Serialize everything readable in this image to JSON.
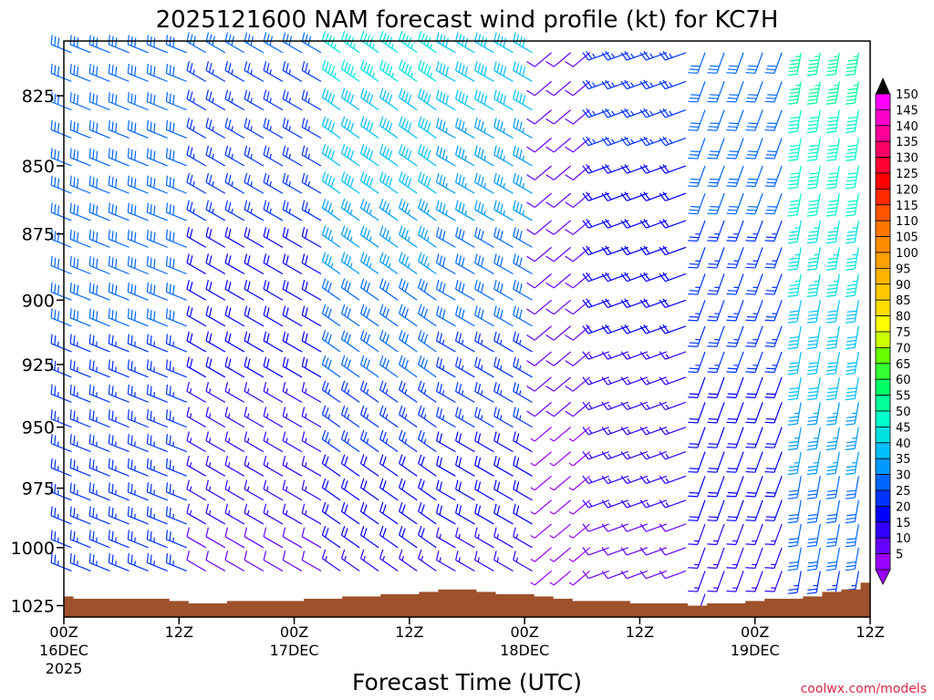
{
  "chart_data": {
    "type": "wind-barb",
    "title": "2025121600 NAM forecast wind profile (kt) for KC7H",
    "xlabel": "Forecast Time (UTC)",
    "ylabel": "",
    "watermark": "coolwx.com/models",
    "y_axis": {
      "reversed": true,
      "ticks": [
        825,
        850,
        875,
        900,
        925,
        950,
        975,
        1000,
        1025
      ],
      "range": [
        806,
        1030
      ]
    },
    "x_axis": {
      "range_hours": [
        0,
        84
      ],
      "ticks": [
        {
          "hour": 0,
          "label": "00Z",
          "sub": "16DEC",
          "sub2": "2025"
        },
        {
          "hour": 12,
          "label": "12Z",
          "sub": "",
          "sub2": ""
        },
        {
          "hour": 24,
          "label": "00Z",
          "sub": "17DEC",
          "sub2": ""
        },
        {
          "hour": 36,
          "label": "12Z",
          "sub": "",
          "sub2": ""
        },
        {
          "hour": 48,
          "label": "00Z",
          "sub": "18DEC",
          "sub2": ""
        },
        {
          "hour": 60,
          "label": "12Z",
          "sub": "",
          "sub2": ""
        },
        {
          "hour": 72,
          "label": "00Z",
          "sub": "19DEC",
          "sub2": ""
        },
        {
          "hour": 84,
          "label": "12Z",
          "sub": "",
          "sub2": ""
        }
      ]
    },
    "colorbar": {
      "values": [
        150,
        145,
        140,
        135,
        130,
        125,
        120,
        115,
        110,
        105,
        100,
        95,
        90,
        85,
        80,
        75,
        70,
        65,
        60,
        55,
        50,
        45,
        40,
        35,
        30,
        25,
        20,
        15,
        10,
        5
      ],
      "colors": [
        "#ff00ff",
        "#ff00cc",
        "#ff0099",
        "#ff0066",
        "#ff0033",
        "#ff0000",
        "#ff2a00",
        "#ff5500",
        "#ff7700",
        "#ff8c00",
        "#ffa000",
        "#ffb400",
        "#ffc800",
        "#ffdc00",
        "#ffff00",
        "#ccff00",
        "#66ff00",
        "#33ff33",
        "#00ff66",
        "#00ff99",
        "#00ffcc",
        "#00e0e0",
        "#00bfff",
        "#0099ff",
        "#0066ff",
        "#0033ff",
        "#0000ff",
        "#3300ff",
        "#6600ff",
        "#9900ff"
      ]
    },
    "surface_pressure": {
      "hours": [
        0,
        2,
        4,
        6,
        8,
        10,
        12,
        14,
        16,
        18,
        20,
        22,
        24,
        26,
        28,
        30,
        32,
        34,
        36,
        38,
        40,
        42,
        44,
        46,
        48,
        50,
        52,
        54,
        56,
        58,
        60,
        62,
        64,
        66,
        68,
        70,
        72,
        74,
        76,
        78,
        80,
        82,
        84
      ],
      "values": [
        1021,
        1022,
        1022,
        1022,
        1022,
        1022,
        1023,
        1024,
        1024,
        1023,
        1023,
        1023,
        1023,
        1022,
        1022,
        1021,
        1021,
        1020,
        1020,
        1019,
        1018,
        1018,
        1019,
        1020,
        1020,
        1021,
        1022,
        1023,
        1023,
        1023,
        1024,
        1024,
        1024,
        1025,
        1024,
        1024,
        1023,
        1022,
        1022,
        1021,
        1019,
        1018,
        1015
      ]
    },
    "wind_regimes": [
      {
        "hours": [
          0,
          13
        ],
        "direction_deg": 292,
        "speed_kt_low": 25,
        "speed_kt_high": 30
      },
      {
        "hours": [
          13,
          27
        ],
        "direction_deg": 300,
        "speed_kt_low": 10,
        "speed_kt_high": 28
      },
      {
        "hours": [
          27,
          40
        ],
        "direction_deg": 305,
        "speed_kt_low": 15,
        "speed_kt_high": 45
      },
      {
        "hours": [
          40,
          50
        ],
        "direction_deg": 300,
        "speed_kt_low": 15,
        "speed_kt_high": 40
      },
      {
        "hours": [
          50,
          56
        ],
        "direction_deg": 230,
        "speed_kt_low": 5,
        "speed_kt_high": 12
      },
      {
        "hours": [
          56,
          65
        ],
        "direction_deg": 250,
        "speed_kt_low": 10,
        "speed_kt_high": 25
      },
      {
        "hours": [
          65,
          76
        ],
        "direction_deg": 200,
        "speed_kt_low": 15,
        "speed_kt_high": 32
      },
      {
        "hours": [
          76,
          84
        ],
        "direction_deg": 190,
        "speed_kt_low": 25,
        "speed_kt_high": 55
      }
    ]
  }
}
